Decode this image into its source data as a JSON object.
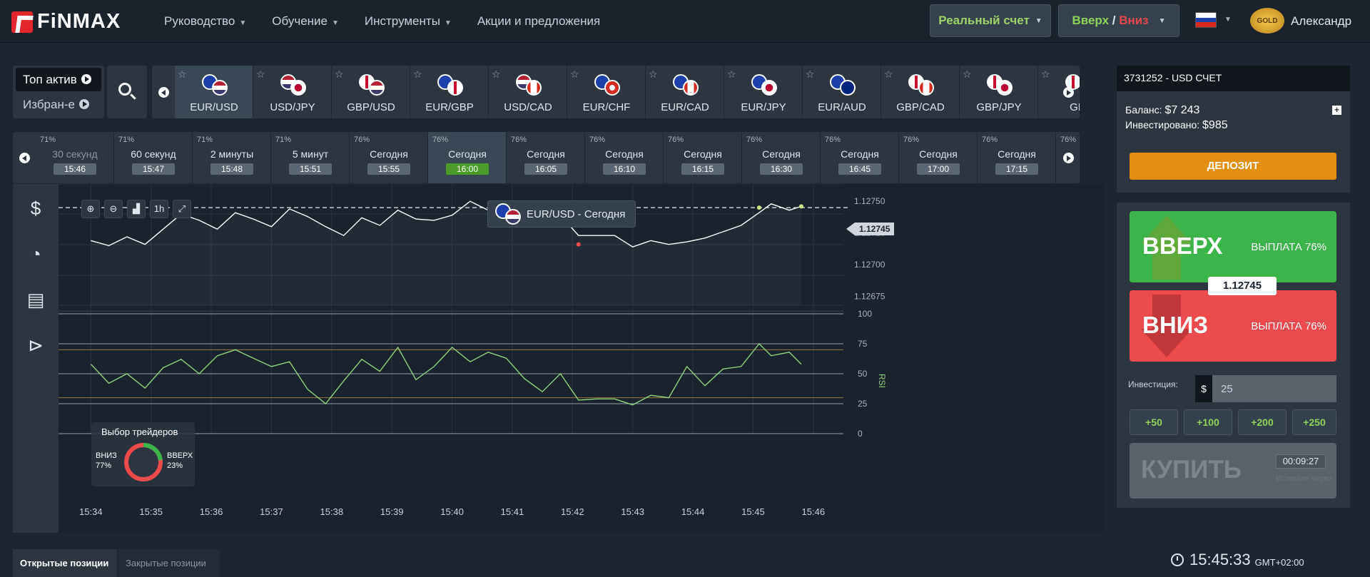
{
  "header": {
    "logo": "FiNMAX",
    "nav": [
      "Руководство",
      "Обучение",
      "Инструменты",
      "Акции и предложения"
    ],
    "account_type": "Реальный счет",
    "direction_up": "Вверх",
    "direction_sep": " / ",
    "direction_down": "Вниз",
    "gold_badge": "GOLD",
    "username": "Александр"
  },
  "asset_tabs": {
    "top": "Топ актив",
    "favorites": "Избран-е"
  },
  "assets": [
    "EUR/USD",
    "USD/JPY",
    "GBP/USD",
    "EUR/GBP",
    "USD/CAD",
    "EUR/CHF",
    "EUR/CAD",
    "EUR/JPY",
    "EUR/AUD",
    "GBP/CAD",
    "GBP/JPY",
    "GB"
  ],
  "expiries": [
    {
      "pct": "71%",
      "label": "30 секунд",
      "time": "15:46",
      "dim": true
    },
    {
      "pct": "71%",
      "label": "60 секунд",
      "time": "15:47"
    },
    {
      "pct": "71%",
      "label": "2 минуты",
      "time": "15:48"
    },
    {
      "pct": "71%",
      "label": "5 минут",
      "time": "15:51"
    },
    {
      "pct": "76%",
      "label": "Сегодня",
      "time": "15:55"
    },
    {
      "pct": "76%",
      "label": "Сегодня",
      "time": "16:00",
      "active": true
    },
    {
      "pct": "76%",
      "label": "Сегодня",
      "time": "16:05"
    },
    {
      "pct": "76%",
      "label": "Сегодня",
      "time": "16:10"
    },
    {
      "pct": "76%",
      "label": "Сегодня",
      "time": "16:15"
    },
    {
      "pct": "76%",
      "label": "Сегодня",
      "time": "16:30"
    },
    {
      "pct": "76%",
      "label": "Сегодня",
      "time": "16:45"
    },
    {
      "pct": "76%",
      "label": "Сегодня",
      "time": "17:00"
    },
    {
      "pct": "76%",
      "label": "Сегодня",
      "time": "17:15"
    },
    {
      "pct": "76%",
      "label": "",
      "time": ""
    }
  ],
  "chart": {
    "caption": "EUR/USD - Сегодня",
    "zoom_buttons": [
      "⊕",
      "⊖",
      "▟",
      "1h",
      "⤢"
    ],
    "current_price": "1.12745",
    "price_ticks": [
      "1.12750",
      "1.12725",
      "1.12700",
      "1.12675"
    ],
    "rsi_ticks": [
      "100",
      "75",
      "50",
      "25",
      "0"
    ],
    "rsi_label": "RSI",
    "time_ticks": [
      "15:34",
      "15:35",
      "15:36",
      "15:37",
      "15:38",
      "15:39",
      "15:40",
      "15:41",
      "15:42",
      "15:43",
      "15:44",
      "15:45",
      "15:46"
    ]
  },
  "chart_data": {
    "type": "line",
    "series": [
      {
        "x": [
          0,
          0.3,
          0.6,
          0.9,
          1.2,
          1.5,
          1.8,
          2.1,
          2.4,
          2.7,
          3.0,
          3.3,
          3.6,
          3.9,
          4.2,
          4.5,
          4.8,
          5.1,
          5.4,
          5.7,
          6.0,
          6.3,
          6.6,
          6.9,
          7.2,
          7.5,
          7.8,
          8.1,
          8.4,
          8.7,
          9.0,
          9.3,
          9.6,
          9.9,
          10.2,
          10.5,
          10.8,
          11.1,
          11.3,
          11.6,
          11.8
        ],
        "y": [
          1.12719,
          1.12715,
          1.12722,
          1.12716,
          1.12728,
          1.1274,
          1.12735,
          1.12728,
          1.12741,
          1.12736,
          1.1273,
          1.12744,
          1.12738,
          1.1273,
          1.12723,
          1.12737,
          1.12731,
          1.12743,
          1.12736,
          1.12735,
          1.12739,
          1.1275,
          1.12743,
          1.12742,
          1.12735,
          1.12737,
          1.12739,
          1.12723,
          1.12723,
          1.12723,
          1.12714,
          1.12719,
          1.12716,
          1.12718,
          1.12721,
          1.12726,
          1.12731,
          1.12741,
          1.12748,
          1.12743,
          1.12746
        ],
        "name": ""
      },
      {
        "x": [
          0,
          0.3,
          0.6,
          0.9,
          1.2,
          1.5,
          1.8,
          2.1,
          2.4,
          2.7,
          3.0,
          3.3,
          3.6,
          3.9,
          4.2,
          4.5,
          4.8,
          5.1,
          5.4,
          5.7,
          6.0,
          6.3,
          6.6,
          6.9,
          7.2,
          7.5,
          7.8,
          8.1,
          8.4,
          8.7,
          9.0,
          9.3,
          9.6,
          9.9,
          10.2,
          10.5,
          10.8,
          11.1,
          11.3,
          11.6,
          11.8
        ],
        "y": [
          58,
          42,
          50,
          38,
          55,
          62,
          50,
          65,
          70,
          63,
          56,
          60,
          37,
          25,
          44,
          62,
          52,
          72,
          45,
          56,
          72,
          60,
          68,
          63,
          46,
          35,
          50,
          28,
          29,
          29,
          24,
          32,
          30,
          56,
          40,
          54,
          56,
          75,
          65,
          68,
          58
        ],
        "name": "RSI"
      }
    ],
    "ylim": [
      1.12668,
      1.12758
    ],
    "rsi_lim": [
      0,
      100
    ],
    "xlim": [
      -0.3,
      12.5
    ]
  },
  "traders": {
    "title": "Выбор трейдеров",
    "down_label": "ВНИЗ",
    "down_pct": "77%",
    "up_label": "ВВЕРХ",
    "up_pct": "23%",
    "down_value": 77,
    "up_value": 23
  },
  "account": {
    "title": "3731252 - USD СЧЕТ",
    "balance_label": "Баланс:",
    "balance": "$7 243",
    "invested_label": "Инвестировано:",
    "invested": "$985",
    "deposit": "ДЕПОЗИТ"
  },
  "trade": {
    "up_label": "ВВЕРХ",
    "up_payout": "ВЫПЛАТА 76%",
    "down_label": "ВНИЗ",
    "down_payout": "ВЫПЛАТА 76%",
    "price": "1.12745",
    "invest_label": "Инвестиция:",
    "currency": "$",
    "invest_value": "25",
    "quick": [
      "+50",
      "+100",
      "+200",
      "+250"
    ],
    "buy": "КУПИТЬ",
    "timer": "00:09:27",
    "expires_label": "Истекает через"
  },
  "footer": {
    "open_positions": "Открытые позиции",
    "closed_positions": "Закрытые позиции",
    "clock": "15:45:33",
    "tz": "GMT+02:00"
  },
  "colors": {
    "up": "#3bb54a",
    "down": "#ec4a4d",
    "accent": "#e38f0f"
  }
}
